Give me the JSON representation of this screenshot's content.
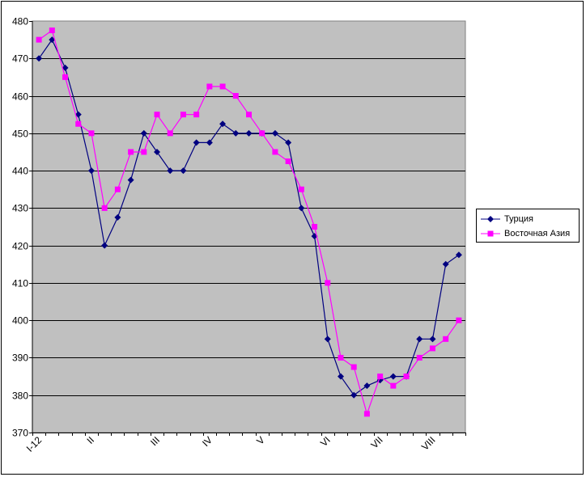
{
  "chart_data": {
    "type": "line",
    "title": "",
    "xlabel": "",
    "ylabel": "",
    "ylim": [
      370,
      480
    ],
    "yticks": [
      370,
      380,
      390,
      400,
      410,
      420,
      430,
      440,
      450,
      460,
      470,
      480
    ],
    "x_tick_labels": [
      {
        "label": "I-12",
        "index": 0
      },
      {
        "label": "II",
        "index": 4
      },
      {
        "label": "III",
        "index": 9
      },
      {
        "label": "IV",
        "index": 13
      },
      {
        "label": "V",
        "index": 17
      },
      {
        "label": "VI",
        "index": 22
      },
      {
        "label": "VII",
        "index": 26
      },
      {
        "label": "VIII",
        "index": 30
      }
    ],
    "grid": true,
    "legend_position": "right",
    "plot_background": "#c0c0c0",
    "series": [
      {
        "name": "Турция",
        "color": "#000080",
        "marker": "diamond",
        "values": [
          470,
          475,
          467.5,
          455,
          440,
          420,
          427.5,
          437.5,
          450,
          445,
          440,
          440,
          447.5,
          447.5,
          452.5,
          450,
          450,
          450,
          450,
          447.5,
          430,
          422.5,
          395,
          385,
          380,
          382.5,
          384,
          385,
          385,
          395,
          395,
          415,
          417.5
        ]
      },
      {
        "name": "Восточная Азия",
        "color": "#ff00ff",
        "marker": "square",
        "values": [
          475,
          477.5,
          465,
          452.5,
          450,
          430,
          435,
          445,
          445,
          455,
          450,
          455,
          455,
          462.5,
          462.5,
          460,
          455,
          450,
          445,
          442.5,
          435,
          425,
          410,
          390,
          387.5,
          375,
          385,
          382.5,
          385,
          390,
          392.5,
          395,
          400
        ]
      }
    ]
  }
}
